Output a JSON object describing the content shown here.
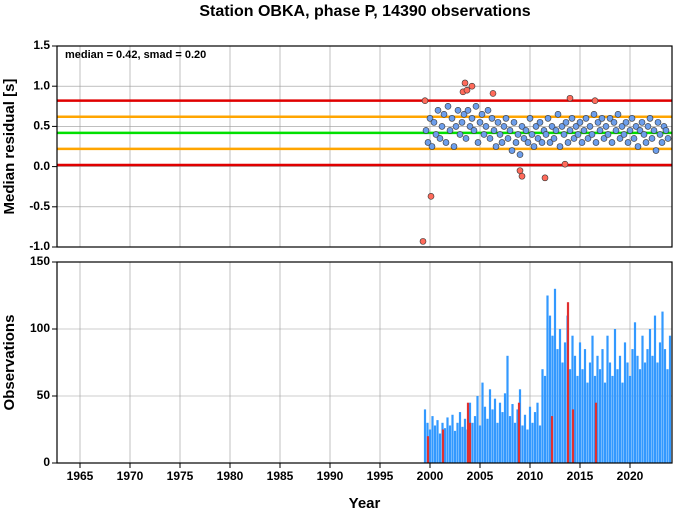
{
  "chart_data": [
    {
      "type": "scatter",
      "title": "Station OBKA, phase P, 14390 observations",
      "annotation": "median = 0.42, smad = 0.20",
      "y_label": "Median residual [s]",
      "xlim": [
        1962.7,
        2024.2
      ],
      "xticks": [
        1965,
        1970,
        1975,
        1980,
        1985,
        1990,
        1995,
        2000,
        2005,
        2010,
        2015,
        2020
      ],
      "ylim": [
        -1.0,
        1.5
      ],
      "yticks": [
        {
          "value": -1,
          "label": "-1.0"
        },
        -0.5,
        {
          "value": 0,
          "label": "0.0"
        },
        0.5,
        {
          "value": 1,
          "label": "1.0"
        },
        1.5
      ],
      "grid": true,
      "reference_lines": [
        {
          "value": 0.02,
          "color": "#e00000"
        },
        {
          "value": 0.22,
          "color": "#ffa500"
        },
        {
          "value": 0.42,
          "color": "#00e000"
        },
        {
          "value": 0.62,
          "color": "#ffa500"
        },
        {
          "value": 0.82,
          "color": "#e00000"
        }
      ],
      "series": [
        {
          "color": "#6d9eeb",
          "x": [
            1999.6,
            1999.8,
            2000.0,
            2000.2,
            2000.4,
            2000.6,
            2000.8,
            2001.0,
            2001.2,
            2001.4,
            2001.6,
            2001.8,
            2002.0,
            2002.2,
            2002.4,
            2002.6,
            2002.8,
            2003.0,
            2003.2,
            2003.4,
            2003.6,
            2003.8,
            2004.0,
            2004.2,
            2004.4,
            2004.6,
            2004.8,
            2005.0,
            2005.2,
            2005.4,
            2005.6,
            2005.8,
            2006.0,
            2006.2,
            2006.4,
            2006.6,
            2006.8,
            2007.0,
            2007.2,
            2007.4,
            2007.6,
            2007.8,
            2008.0,
            2008.2,
            2008.4,
            2008.6,
            2008.8,
            2009.0,
            2009.2,
            2009.4,
            2009.6,
            2009.8,
            2010.0,
            2010.2,
            2010.4,
            2010.6,
            2010.8,
            2011.0,
            2011.2,
            2011.4,
            2011.6,
            2011.8,
            2012.0,
            2012.2,
            2012.4,
            2012.6,
            2012.8,
            2013.0,
            2013.2,
            2013.4,
            2013.6,
            2013.8,
            2014.0,
            2014.2,
            2014.4,
            2014.6,
            2014.8,
            2015.0,
            2015.2,
            2015.4,
            2015.6,
            2015.8,
            2016.0,
            2016.2,
            2016.4,
            2016.6,
            2016.8,
            2017.0,
            2017.2,
            2017.4,
            2017.6,
            2017.8,
            2018.0,
            2018.2,
            2018.4,
            2018.6,
            2018.8,
            2019.0,
            2019.2,
            2019.4,
            2019.6,
            2019.8,
            2020.0,
            2020.2,
            2020.4,
            2020.6,
            2020.8,
            2021.0,
            2021.2,
            2021.4,
            2021.6,
            2021.8,
            2022.0,
            2022.2,
            2022.4,
            2022.6,
            2022.8,
            2023.0,
            2023.2,
            2023.4,
            2023.6,
            2023.8
          ],
          "values": [
            0.45,
            0.3,
            0.6,
            0.25,
            0.55,
            0.4,
            0.7,
            0.35,
            0.5,
            0.65,
            0.3,
            0.75,
            0.45,
            0.6,
            0.25,
            0.5,
            0.7,
            0.4,
            0.55,
            0.65,
            0.35,
            0.7,
            0.5,
            0.6,
            0.45,
            0.75,
            0.3,
            0.55,
            0.65,
            0.4,
            0.5,
            0.7,
            0.35,
            0.6,
            0.45,
            0.25,
            0.55,
            0.4,
            0.3,
            0.5,
            0.6,
            0.35,
            0.45,
            0.2,
            0.55,
            0.3,
            0.4,
            0.15,
            0.5,
            0.35,
            0.45,
            0.3,
            0.6,
            0.4,
            0.25,
            0.5,
            0.35,
            0.55,
            0.3,
            0.45,
            0.4,
            0.6,
            0.3,
            0.5,
            0.35,
            0.45,
            0.65,
            0.25,
            0.5,
            0.4,
            0.55,
            0.3,
            0.45,
            0.6,
            0.35,
            0.5,
            0.4,
            0.55,
            0.3,
            0.45,
            0.6,
            0.35,
            0.5,
            0.4,
            0.65,
            0.3,
            0.55,
            0.45,
            0.6,
            0.35,
            0.5,
            0.4,
            0.6,
            0.3,
            0.55,
            0.45,
            0.65,
            0.35,
            0.5,
            0.4,
            0.55,
            0.3,
            0.45,
            0.6,
            0.35,
            0.5,
            0.25,
            0.45,
            0.55,
            0.4,
            0.3,
            0.5,
            0.6,
            0.35,
            0.45,
            0.2,
            0.55,
            0.4,
            0.3,
            0.5,
            0.45,
            0.35
          ]
        },
        {
          "color": "#ff6b5b",
          "x": [
            1999.3,
            1999.5,
            2000.1,
            2003.3,
            2003.5,
            2003.7,
            2004.2,
            2006.3,
            2009.0,
            2009.2,
            2011.5,
            2013.5,
            2014.0,
            2016.5
          ],
          "values": [
            -0.93,
            0.82,
            -0.37,
            0.93,
            1.04,
            0.95,
            1.0,
            0.91,
            -0.05,
            -0.12,
            -0.14,
            0.03,
            0.85,
            0.82
          ]
        }
      ]
    },
    {
      "type": "bar",
      "x_label": "Year",
      "y_label": "Observations",
      "xlim": [
        1962.7,
        2024.2
      ],
      "xticks": [
        1965,
        1970,
        1975,
        1980,
        1985,
        1990,
        1995,
        2000,
        2005,
        2010,
        2015,
        2020
      ],
      "ylim": [
        0,
        150
      ],
      "yticks": [
        0,
        50,
        100,
        150
      ],
      "grid": true,
      "series": [
        {
          "color": "#3399ff",
          "x": [
            1999.5,
            1999.75,
            2000.0,
            2000.25,
            2000.5,
            2000.75,
            2001.0,
            2001.25,
            2001.5,
            2001.75,
            2002.0,
            2002.25,
            2002.5,
            2002.75,
            2003.0,
            2003.25,
            2003.5,
            2003.75,
            2004.0,
            2004.25,
            2004.5,
            2004.75,
            2005.0,
            2005.25,
            2005.5,
            2005.75,
            2006.0,
            2006.25,
            2006.5,
            2006.75,
            2007.0,
            2007.25,
            2007.5,
            2007.75,
            2008.0,
            2008.25,
            2008.5,
            2008.75,
            2009.0,
            2009.25,
            2009.5,
            2009.75,
            2010.0,
            2010.25,
            2010.5,
            2010.75,
            2011.0,
            2011.25,
            2011.5,
            2011.75,
            2012.0,
            2012.25,
            2012.5,
            2012.75,
            2013.0,
            2013.25,
            2013.5,
            2013.75,
            2014.0,
            2014.25,
            2014.5,
            2014.75,
            2015.0,
            2015.25,
            2015.5,
            2015.75,
            2016.0,
            2016.25,
            2016.5,
            2016.75,
            2017.0,
            2017.25,
            2017.5,
            2017.75,
            2018.0,
            2018.25,
            2018.5,
            2018.75,
            2019.0,
            2019.25,
            2019.5,
            2019.75,
            2020.0,
            2020.25,
            2020.5,
            2020.75,
            2021.0,
            2021.25,
            2021.5,
            2021.75,
            2022.0,
            2022.25,
            2022.5,
            2022.75,
            2023.0,
            2023.25,
            2023.5,
            2023.75,
            2024.0
          ],
          "values": [
            40,
            30,
            25,
            35,
            28,
            32,
            22,
            30,
            26,
            34,
            28,
            36,
            24,
            30,
            38,
            27,
            33,
            25,
            45,
            30,
            35,
            50,
            28,
            60,
            42,
            33,
            55,
            40,
            48,
            30,
            45,
            38,
            52,
            80,
            35,
            44,
            30,
            40,
            55,
            28,
            36,
            25,
            42,
            30,
            38,
            45,
            28,
            70,
            65,
            125,
            110,
            95,
            130,
            85,
            100,
            75,
            90,
            110,
            70,
            95,
            80,
            65,
            90,
            70,
            85,
            60,
            75,
            95,
            65,
            80,
            70,
            85,
            60,
            95,
            75,
            65,
            100,
            70,
            80,
            60,
            90,
            75,
            65,
            85,
            105,
            80,
            70,
            95,
            75,
            85,
            100,
            80,
            110,
            75,
            90,
            113,
            85,
            70,
            95
          ]
        },
        {
          "color": "#e03030",
          "x": [
            1999.8,
            2001.3,
            2003.8,
            2004.0,
            2008.9,
            2012.2,
            2013.8,
            2014.3,
            2016.6
          ],
          "values": [
            20,
            25,
            45,
            30,
            45,
            35,
            120,
            40,
            45
          ]
        }
      ]
    }
  ]
}
